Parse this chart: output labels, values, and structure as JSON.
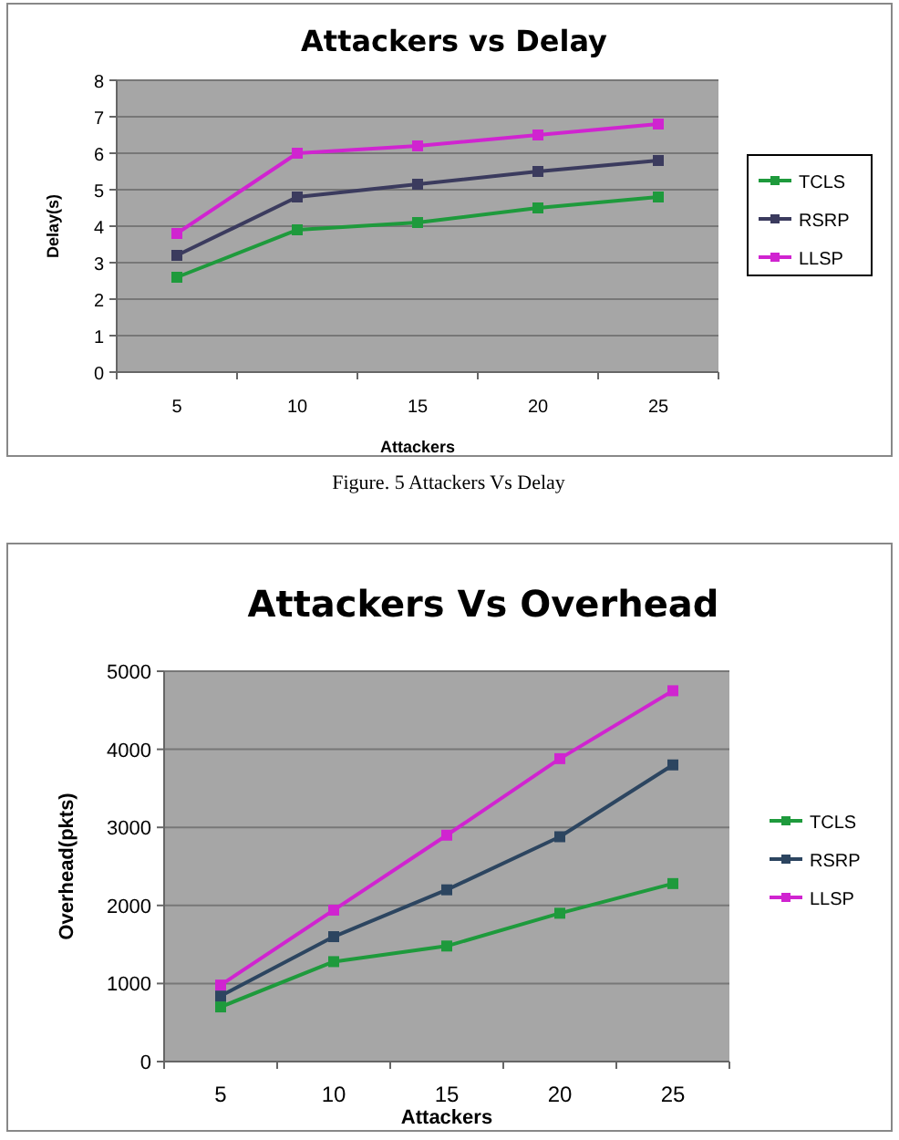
{
  "chart_data": [
    {
      "type": "line",
      "title": "Attackers vs Delay",
      "xlabel": "Attackers",
      "ylabel": "Delay(s)",
      "categories": [
        "5",
        "10",
        "15",
        "20",
        "25"
      ],
      "ylim": [
        0,
        8
      ],
      "yticks": [
        0,
        1,
        2,
        3,
        4,
        5,
        6,
        7,
        8
      ],
      "grid": "y",
      "legend": "right",
      "marker": "square",
      "line_style": "solid",
      "annotations": [
        "Figure. 5 Attackers Vs Delay"
      ],
      "series": [
        {
          "name": "TCLS",
          "color": "#1e9a3c",
          "values": [
            2.6,
            3.9,
            4.1,
            4.5,
            4.8
          ]
        },
        {
          "name": "RSRP",
          "color": "#3b3b5e",
          "values": [
            3.2,
            4.8,
            5.15,
            5.5,
            5.8
          ]
        },
        {
          "name": "LLSP",
          "color": "#d024d0",
          "values": [
            3.8,
            6.0,
            6.2,
            6.5,
            6.8
          ]
        }
      ]
    },
    {
      "type": "line",
      "title": "Attackers Vs Overhead",
      "xlabel": "Attackers",
      "ylabel": "Overhead(pkts)",
      "categories": [
        "5",
        "10",
        "15",
        "20",
        "25"
      ],
      "ylim": [
        0,
        5000
      ],
      "yticks": [
        0,
        1000,
        2000,
        3000,
        4000,
        5000
      ],
      "grid": "y",
      "legend": "right",
      "marker": "square",
      "line_style": "solid",
      "series": [
        {
          "name": "TCLS",
          "color": "#1e9a3c",
          "values": [
            700,
            1280,
            1480,
            1900,
            2280
          ]
        },
        {
          "name": "RSRP",
          "color": "#2c4560",
          "values": [
            840,
            1600,
            2200,
            2880,
            3800
          ]
        },
        {
          "name": "LLSP",
          "color": "#d024d0",
          "values": [
            980,
            1940,
            2900,
            3880,
            4750
          ]
        }
      ]
    }
  ]
}
